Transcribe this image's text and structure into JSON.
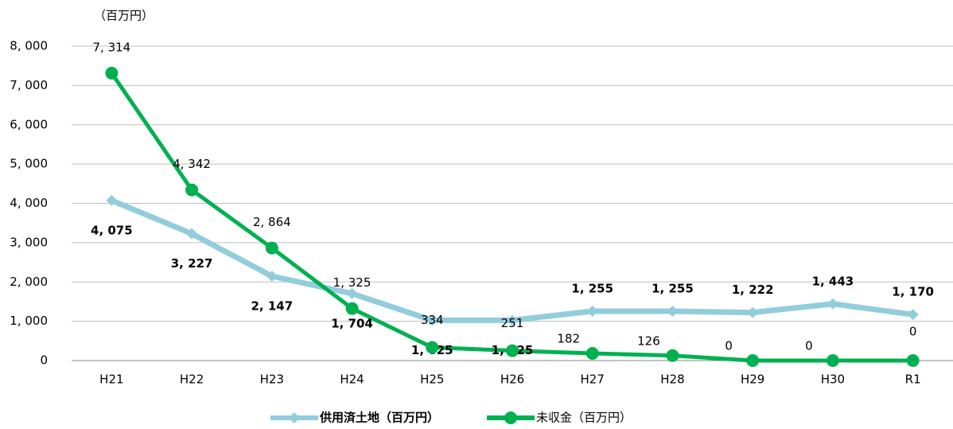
{
  "chart_data": {
    "type": "line",
    "unit_label": "（百万円）",
    "categories": [
      "H21",
      "H22",
      "H23",
      "H24",
      "H25",
      "H26",
      "H27",
      "H28",
      "H29",
      "H30",
      "R1"
    ],
    "series": [
      {
        "name": "供用済土地（百万円）",
        "color": "#92cddc",
        "marker": "diamond",
        "values": [
          4075,
          3227,
          2147,
          1704,
          1025,
          1025,
          1255,
          1255,
          1222,
          1443,
          1170
        ],
        "value_labels": [
          "4, 075",
          "3, 227",
          "2, 147",
          "1, 704",
          "1, 025",
          "1, 025",
          "1, 255",
          "1, 255",
          "1, 222",
          "1, 443",
          "1, 170"
        ]
      },
      {
        "name": "未収金（百万円）",
        "color": "#00b050",
        "marker": "circle",
        "values": [
          7314,
          4342,
          2864,
          1325,
          334,
          251,
          182,
          126,
          0,
          0,
          0
        ],
        "value_labels": [
          "7, 314",
          "4, 342",
          "2, 864",
          "1, 325",
          "334",
          "251",
          "182",
          "126",
          "0",
          "0",
          "0"
        ]
      }
    ],
    "ylim": [
      0,
      8000
    ],
    "yticks": [
      0,
      {
        "value": 1000,
        "label": "1, 000"
      },
      {
        "value": 2000,
        "label": "2, 000"
      },
      {
        "value": 3000,
        "label": "3, 000"
      },
      {
        "value": 4000,
        "label": "4, 000"
      },
      {
        "value": 5000,
        "label": "5, 000"
      },
      {
        "value": 6000,
        "label": "6, 000"
      },
      {
        "value": 7000,
        "label": "7, 000"
      },
      {
        "value": 8000,
        "label": "8, 000"
      }
    ],
    "grid": true,
    "legend": "bottom"
  }
}
